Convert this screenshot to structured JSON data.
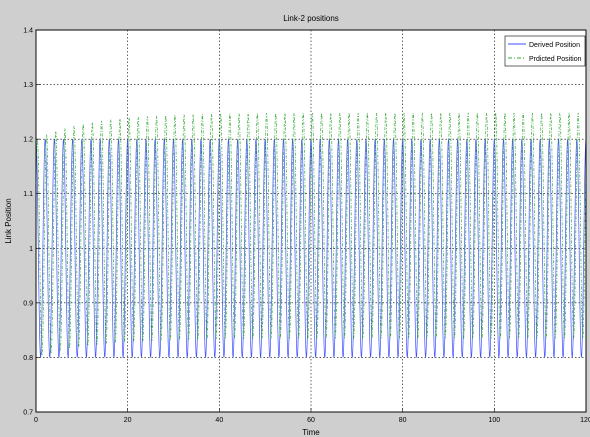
{
  "chart_data": {
    "type": "line",
    "title": "Link-2 positions",
    "xlabel": "Time",
    "ylabel": "Link Position",
    "xlim": [
      0,
      120
    ],
    "ylim": [
      0.7,
      1.4
    ],
    "x_ticks": [
      "0",
      "20",
      "40",
      "60",
      "80",
      "100",
      "120"
    ],
    "y_ticks": [
      "0.7",
      "0.8",
      "0.9",
      "1",
      "1.1",
      "1.2",
      "1.3",
      "1.4"
    ],
    "grid": true,
    "legend_position": "top-right",
    "period": 2.0,
    "series": [
      {
        "name": "Derived Position",
        "color": "#3c50ff",
        "line_style": "solid",
        "min": 0.8,
        "max": 1.2
      },
      {
        "name": "Prdicted Position",
        "color": "#33a833",
        "line_style": "dash-dot",
        "min_start": 0.8,
        "max_start": 1.2,
        "min_steady": 0.835,
        "max_steady": 1.248
      }
    ]
  }
}
